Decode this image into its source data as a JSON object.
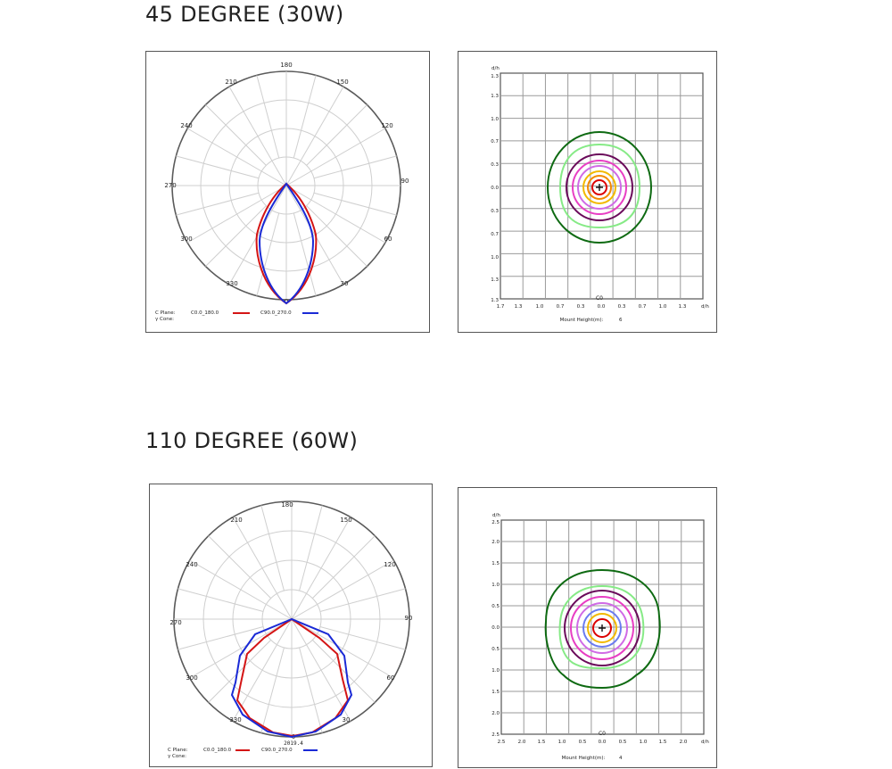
{
  "sections": [
    {
      "title": "45 DEGREE (30W)",
      "polar": {
        "angle_labels": [
          "180",
          "150",
          "120",
          "90",
          "60",
          "30",
          "0",
          "330",
          "300",
          "270",
          "240",
          "210"
        ],
        "legend": {
          "c_plane_label": "C Plane:",
          "gamma_cone_label": "γ Cone:",
          "series": [
            {
              "name": "C0.0_180.0",
              "color": "#d41515"
            },
            {
              "name": "C90.0_270.0",
              "color": "#1a2ad6"
            }
          ]
        },
        "footnote": ""
      },
      "isolux": {
        "axis_unit": "d/h",
        "y_tick_labels": [
          "1.3",
          "1.3",
          "1.0",
          "0.7",
          "0.3",
          "0.0",
          "0.3",
          "0.7",
          "1.0",
          "1.3",
          "1.3"
        ],
        "x_tick_labels": [
          "1.7",
          "1.3",
          "1.0",
          "0.7",
          "0.3",
          "0.0",
          "0.3",
          "0.7",
          "1.0",
          "1.3",
          "1.7"
        ],
        "plane_label": "C0",
        "mount_label": "Mount Height(m):",
        "mount_value": "6"
      }
    },
    {
      "title": "110 DEGREE (60W)",
      "polar": {
        "angle_labels": [
          "180",
          "150",
          "120",
          "90",
          "60",
          "30",
          "0",
          "330",
          "300",
          "270",
          "240",
          "210"
        ],
        "legend": {
          "c_plane_label": "C Plane:",
          "gamma_cone_label": "γ Cone:",
          "series": [
            {
              "name": "C0.0_180.0",
              "color": "#d41515"
            },
            {
              "name": "C90.0_270.0",
              "color": "#1a2ad6"
            }
          ]
        },
        "footnote": "2019.4"
      },
      "isolux": {
        "axis_unit": "d/h",
        "y_tick_labels": [
          "2.5",
          "2.0",
          "1.5",
          "1.0",
          "0.5",
          "0.0",
          "0.5",
          "1.0",
          "1.5",
          "2.0",
          "2.5"
        ],
        "x_tick_labels": [
          "2.5",
          "2.0",
          "1.5",
          "1.0",
          "0.5",
          "0.0",
          "0.5",
          "1.0",
          "1.5",
          "2.0",
          "2.5"
        ],
        "plane_label": "C0",
        "mount_label": "Mount Height(m):",
        "mount_value": "4"
      }
    }
  ],
  "colors": {
    "isolux_rings": [
      "#0e6a12",
      "#86ea86",
      "#6a0a5a",
      "#e83ec4",
      "#d06ae6",
      "#f2b900",
      "#f28a00",
      "#dc0000"
    ]
  }
}
